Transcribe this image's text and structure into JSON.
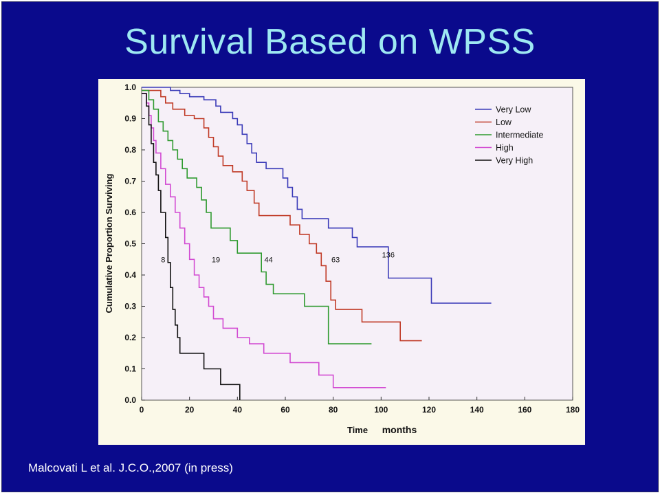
{
  "slide": {
    "title": "Survival Based on WPSS",
    "citation": "Malcovati L et al. J.C.O.,2007 (in press)",
    "background_color": "#0a0a8c",
    "title_color": "#9ee8f2"
  },
  "chart_data": {
    "type": "line",
    "step": true,
    "xlabel": "Time",
    "xlabel_unit": "months",
    "ylabel": "Cumulative Proportion Surviving",
    "xlim": [
      0,
      180
    ],
    "ylim": [
      0,
      1
    ],
    "xticks": [
      0,
      20,
      40,
      60,
      80,
      100,
      120,
      140,
      160,
      180
    ],
    "yticks": [
      "0.0",
      "0.1",
      "0.2",
      "0.3",
      "0.4",
      "0.5",
      "0.6",
      "0.7",
      "0.8",
      "0.9",
      "1.0"
    ],
    "grid": false,
    "legend_position": "top-right",
    "series": [
      {
        "name": "Very Low",
        "color": "#3a3ab8",
        "points": [
          [
            0,
            1.0
          ],
          [
            12,
            1.0
          ],
          [
            12,
            0.99
          ],
          [
            16,
            0.99
          ],
          [
            16,
            0.98
          ],
          [
            20,
            0.98
          ],
          [
            20,
            0.97
          ],
          [
            26,
            0.97
          ],
          [
            26,
            0.96
          ],
          [
            31,
            0.96
          ],
          [
            31,
            0.94
          ],
          [
            33,
            0.94
          ],
          [
            33,
            0.92
          ],
          [
            38,
            0.92
          ],
          [
            38,
            0.9
          ],
          [
            40,
            0.9
          ],
          [
            40,
            0.88
          ],
          [
            42,
            0.88
          ],
          [
            42,
            0.85
          ],
          [
            44,
            0.85
          ],
          [
            44,
            0.82
          ],
          [
            46,
            0.82
          ],
          [
            46,
            0.79
          ],
          [
            48,
            0.79
          ],
          [
            48,
            0.76
          ],
          [
            52,
            0.76
          ],
          [
            52,
            0.74
          ],
          [
            59,
            0.74
          ],
          [
            59,
            0.71
          ],
          [
            61,
            0.71
          ],
          [
            61,
            0.68
          ],
          [
            63,
            0.68
          ],
          [
            63,
            0.65
          ],
          [
            65,
            0.65
          ],
          [
            65,
            0.61
          ],
          [
            67,
            0.61
          ],
          [
            67,
            0.58
          ],
          [
            78,
            0.58
          ],
          [
            78,
            0.55
          ],
          [
            88,
            0.55
          ],
          [
            88,
            0.52
          ],
          [
            90,
            0.52
          ],
          [
            90,
            0.49
          ],
          [
            103,
            0.49
          ],
          [
            103,
            0.39
          ],
          [
            121,
            0.39
          ],
          [
            121,
            0.31
          ],
          [
            146,
            0.31
          ]
        ]
      },
      {
        "name": "Low",
        "color": "#c03a26",
        "points": [
          [
            0,
            0.99
          ],
          [
            8,
            0.99
          ],
          [
            8,
            0.97
          ],
          [
            10,
            0.97
          ],
          [
            10,
            0.95
          ],
          [
            13,
            0.95
          ],
          [
            13,
            0.93
          ],
          [
            18,
            0.93
          ],
          [
            18,
            0.91
          ],
          [
            22,
            0.91
          ],
          [
            22,
            0.9
          ],
          [
            26,
            0.9
          ],
          [
            26,
            0.87
          ],
          [
            28,
            0.87
          ],
          [
            28,
            0.84
          ],
          [
            30,
            0.84
          ],
          [
            30,
            0.81
          ],
          [
            32,
            0.81
          ],
          [
            32,
            0.78
          ],
          [
            34,
            0.78
          ],
          [
            34,
            0.75
          ],
          [
            38,
            0.75
          ],
          [
            38,
            0.73
          ],
          [
            42,
            0.73
          ],
          [
            42,
            0.7
          ],
          [
            44,
            0.7
          ],
          [
            44,
            0.67
          ],
          [
            47,
            0.67
          ],
          [
            47,
            0.63
          ],
          [
            49,
            0.63
          ],
          [
            49,
            0.59
          ],
          [
            62,
            0.59
          ],
          [
            62,
            0.56
          ],
          [
            66,
            0.56
          ],
          [
            66,
            0.53
          ],
          [
            70,
            0.53
          ],
          [
            70,
            0.5
          ],
          [
            73,
            0.5
          ],
          [
            73,
            0.47
          ],
          [
            75,
            0.47
          ],
          [
            75,
            0.43
          ],
          [
            77,
            0.43
          ],
          [
            77,
            0.38
          ],
          [
            79,
            0.38
          ],
          [
            79,
            0.32
          ],
          [
            81,
            0.32
          ],
          [
            81,
            0.29
          ],
          [
            92,
            0.29
          ],
          [
            92,
            0.25
          ],
          [
            108,
            0.25
          ],
          [
            108,
            0.19
          ],
          [
            117,
            0.19
          ]
        ]
      },
      {
        "name": "Intermediate",
        "color": "#2f9a2f",
        "points": [
          [
            0,
            0.99
          ],
          [
            3,
            0.99
          ],
          [
            3,
            0.96
          ],
          [
            5,
            0.96
          ],
          [
            5,
            0.93
          ],
          [
            7,
            0.93
          ],
          [
            7,
            0.89
          ],
          [
            9,
            0.89
          ],
          [
            9,
            0.86
          ],
          [
            11,
            0.86
          ],
          [
            11,
            0.83
          ],
          [
            13,
            0.83
          ],
          [
            13,
            0.8
          ],
          [
            15,
            0.8
          ],
          [
            15,
            0.77
          ],
          [
            17,
            0.77
          ],
          [
            17,
            0.74
          ],
          [
            19,
            0.74
          ],
          [
            19,
            0.71
          ],
          [
            23,
            0.71
          ],
          [
            23,
            0.68
          ],
          [
            25,
            0.68
          ],
          [
            25,
            0.64
          ],
          [
            27,
            0.64
          ],
          [
            27,
            0.6
          ],
          [
            29,
            0.6
          ],
          [
            29,
            0.55
          ],
          [
            37,
            0.55
          ],
          [
            37,
            0.51
          ],
          [
            40,
            0.51
          ],
          [
            40,
            0.47
          ],
          [
            50,
            0.47
          ],
          [
            50,
            0.41
          ],
          [
            52,
            0.41
          ],
          [
            52,
            0.37
          ],
          [
            55,
            0.37
          ],
          [
            55,
            0.34
          ],
          [
            68,
            0.34
          ],
          [
            68,
            0.3
          ],
          [
            78,
            0.3
          ],
          [
            78,
            0.18
          ],
          [
            96,
            0.18
          ]
        ]
      },
      {
        "name": "High",
        "color": "#d24ad2",
        "points": [
          [
            0,
            0.98
          ],
          [
            2,
            0.98
          ],
          [
            2,
            0.95
          ],
          [
            3,
            0.95
          ],
          [
            3,
            0.91
          ],
          [
            4,
            0.91
          ],
          [
            4,
            0.87
          ],
          [
            5,
            0.87
          ],
          [
            5,
            0.83
          ],
          [
            6,
            0.83
          ],
          [
            6,
            0.79
          ],
          [
            8,
            0.79
          ],
          [
            8,
            0.74
          ],
          [
            10,
            0.74
          ],
          [
            10,
            0.69
          ],
          [
            12,
            0.69
          ],
          [
            12,
            0.65
          ],
          [
            14,
            0.65
          ],
          [
            14,
            0.6
          ],
          [
            16,
            0.6
          ],
          [
            16,
            0.55
          ],
          [
            18,
            0.55
          ],
          [
            18,
            0.5
          ],
          [
            20,
            0.5
          ],
          [
            20,
            0.45
          ],
          [
            22,
            0.45
          ],
          [
            22,
            0.4
          ],
          [
            24,
            0.4
          ],
          [
            24,
            0.36
          ],
          [
            26,
            0.36
          ],
          [
            26,
            0.33
          ],
          [
            28,
            0.33
          ],
          [
            28,
            0.3
          ],
          [
            30,
            0.3
          ],
          [
            30,
            0.26
          ],
          [
            34,
            0.26
          ],
          [
            34,
            0.23
          ],
          [
            40,
            0.23
          ],
          [
            40,
            0.2
          ],
          [
            45,
            0.2
          ],
          [
            45,
            0.18
          ],
          [
            51,
            0.18
          ],
          [
            51,
            0.15
          ],
          [
            62,
            0.15
          ],
          [
            62,
            0.12
          ],
          [
            74,
            0.12
          ],
          [
            74,
            0.08
          ],
          [
            80,
            0.08
          ],
          [
            80,
            0.04
          ],
          [
            102,
            0.04
          ]
        ]
      },
      {
        "name": "Very High",
        "color": "#111111",
        "points": [
          [
            0,
            0.98
          ],
          [
            2,
            0.98
          ],
          [
            2,
            0.94
          ],
          [
            3,
            0.94
          ],
          [
            3,
            0.88
          ],
          [
            4,
            0.88
          ],
          [
            4,
            0.82
          ],
          [
            5,
            0.82
          ],
          [
            5,
            0.76
          ],
          [
            6,
            0.76
          ],
          [
            6,
            0.72
          ],
          [
            7,
            0.72
          ],
          [
            7,
            0.67
          ],
          [
            8,
            0.67
          ],
          [
            8,
            0.6
          ],
          [
            10,
            0.6
          ],
          [
            10,
            0.52
          ],
          [
            11,
            0.52
          ],
          [
            11,
            0.44
          ],
          [
            12,
            0.44
          ],
          [
            12,
            0.36
          ],
          [
            13,
            0.36
          ],
          [
            13,
            0.29
          ],
          [
            14,
            0.29
          ],
          [
            14,
            0.24
          ],
          [
            15,
            0.24
          ],
          [
            15,
            0.2
          ],
          [
            16,
            0.2
          ],
          [
            16,
            0.15
          ],
          [
            26,
            0.15
          ],
          [
            26,
            0.1
          ],
          [
            33,
            0.1
          ],
          [
            33,
            0.05
          ],
          [
            41,
            0.05
          ],
          [
            41,
            0.0
          ]
        ]
      }
    ],
    "annotations": [
      {
        "text": "8",
        "x": 9,
        "y": 0.45
      },
      {
        "text": "19",
        "x": 31,
        "y": 0.45
      },
      {
        "text": "44",
        "x": 53,
        "y": 0.45
      },
      {
        "text": "63",
        "x": 81,
        "y": 0.45
      },
      {
        "text": "136",
        "x": 103,
        "y": 0.465
      }
    ]
  }
}
